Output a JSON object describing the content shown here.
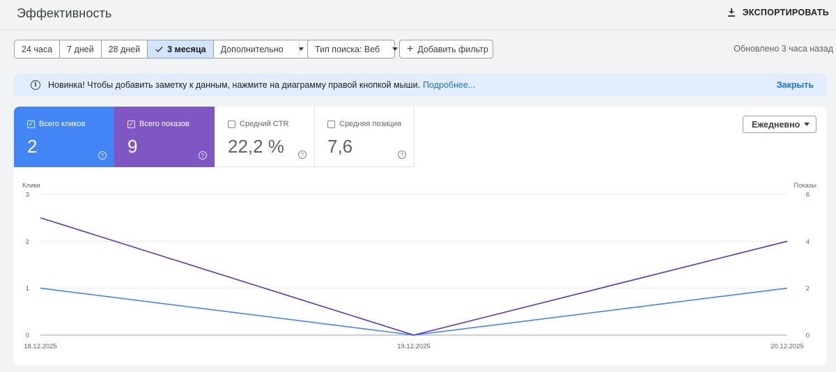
{
  "page_title": "Эффективность",
  "export_label": "ЭКСПОРТИРОВАТЬ",
  "date_range": {
    "options": [
      "24 часа",
      "7 дней",
      "28 дней",
      "3 месяца"
    ],
    "selected": "3 месяца",
    "more_label": "Дополнительно"
  },
  "search_type_label": "Тип поиска: Веб",
  "add_filter_label": "Добавить фильтр",
  "updated_text": "Обновлено 3 часа назад",
  "banner": {
    "text": "Новинка! Чтобы добавить заметку к данным, нажмите на диаграмму правой кнопкой мыши.",
    "link": "Подробнее...",
    "close": "Закрыть"
  },
  "metrics": {
    "clicks": {
      "label": "Всего кликов",
      "value": "2",
      "checked": true,
      "color": "#4285f4"
    },
    "impressions": {
      "label": "Всего показов",
      "value": "9",
      "checked": true,
      "color": "#7e57c2"
    },
    "ctr": {
      "label": "Средний CTR",
      "value": "22,2 %",
      "checked": false
    },
    "position": {
      "label": "Средняя позиция",
      "value": "7,6",
      "checked": false
    }
  },
  "granularity_label": "Ежедневно",
  "chart_data": {
    "type": "line",
    "x": [
      "18.12.2025",
      "19.12.2025",
      "20.12.2025"
    ],
    "left_axis": {
      "label": "Клики",
      "ticks": [
        0,
        1,
        2,
        3
      ],
      "range": [
        0,
        3
      ]
    },
    "right_axis": {
      "label": "Показы",
      "ticks": [
        0,
        2,
        4,
        6
      ],
      "range": [
        0,
        6
      ]
    },
    "series": [
      {
        "name": "Клики",
        "axis": "left",
        "color": "#4285f4",
        "values": [
          1,
          0,
          1
        ]
      },
      {
        "name": "Показы",
        "axis": "right",
        "color": "#5e35b1",
        "values": [
          5,
          0,
          4
        ]
      }
    ],
    "grid": true
  }
}
